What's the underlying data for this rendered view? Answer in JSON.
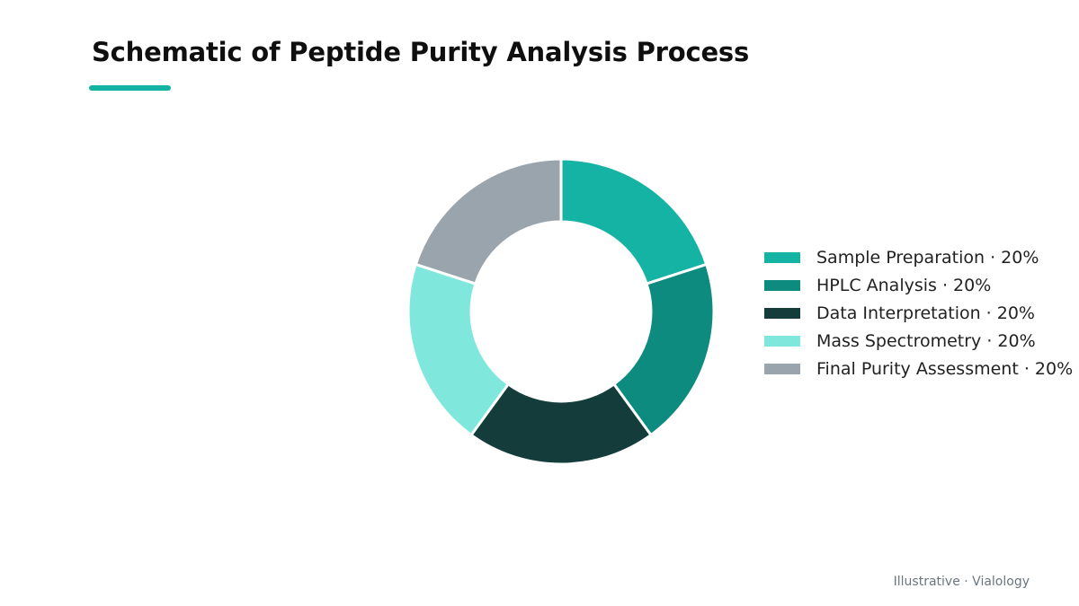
{
  "title": "Schematic of Peptide Purity Analysis Process",
  "footer": "Illustrative · Vialology",
  "colors": {
    "accent": "#14b3a4",
    "background": "#ffffff"
  },
  "chart_data": {
    "type": "pie",
    "variant": "donut",
    "title": "Schematic of Peptide Purity Analysis Process",
    "legend_placement": "right",
    "slices": [
      {
        "label": "Sample Preparation",
        "value": 20,
        "display": "Sample Preparation · 20%",
        "color": "#14b3a4"
      },
      {
        "label": "HPLC Analysis",
        "value": 20,
        "display": "HPLC Analysis · 20%",
        "color": "#0c8b7e"
      },
      {
        "label": "Data Interpretation",
        "value": 20,
        "display": "Data Interpretation · 20%",
        "color": "#133c3a"
      },
      {
        "label": "Mass Spectrometry",
        "value": 20,
        "display": "Mass Spectrometry · 20%",
        "color": "#7fe7dc"
      },
      {
        "label": "Final Purity Assessment",
        "value": 20,
        "display": "Final Purity Assessment · 20%",
        "color": "#9aa4ad"
      }
    ]
  }
}
